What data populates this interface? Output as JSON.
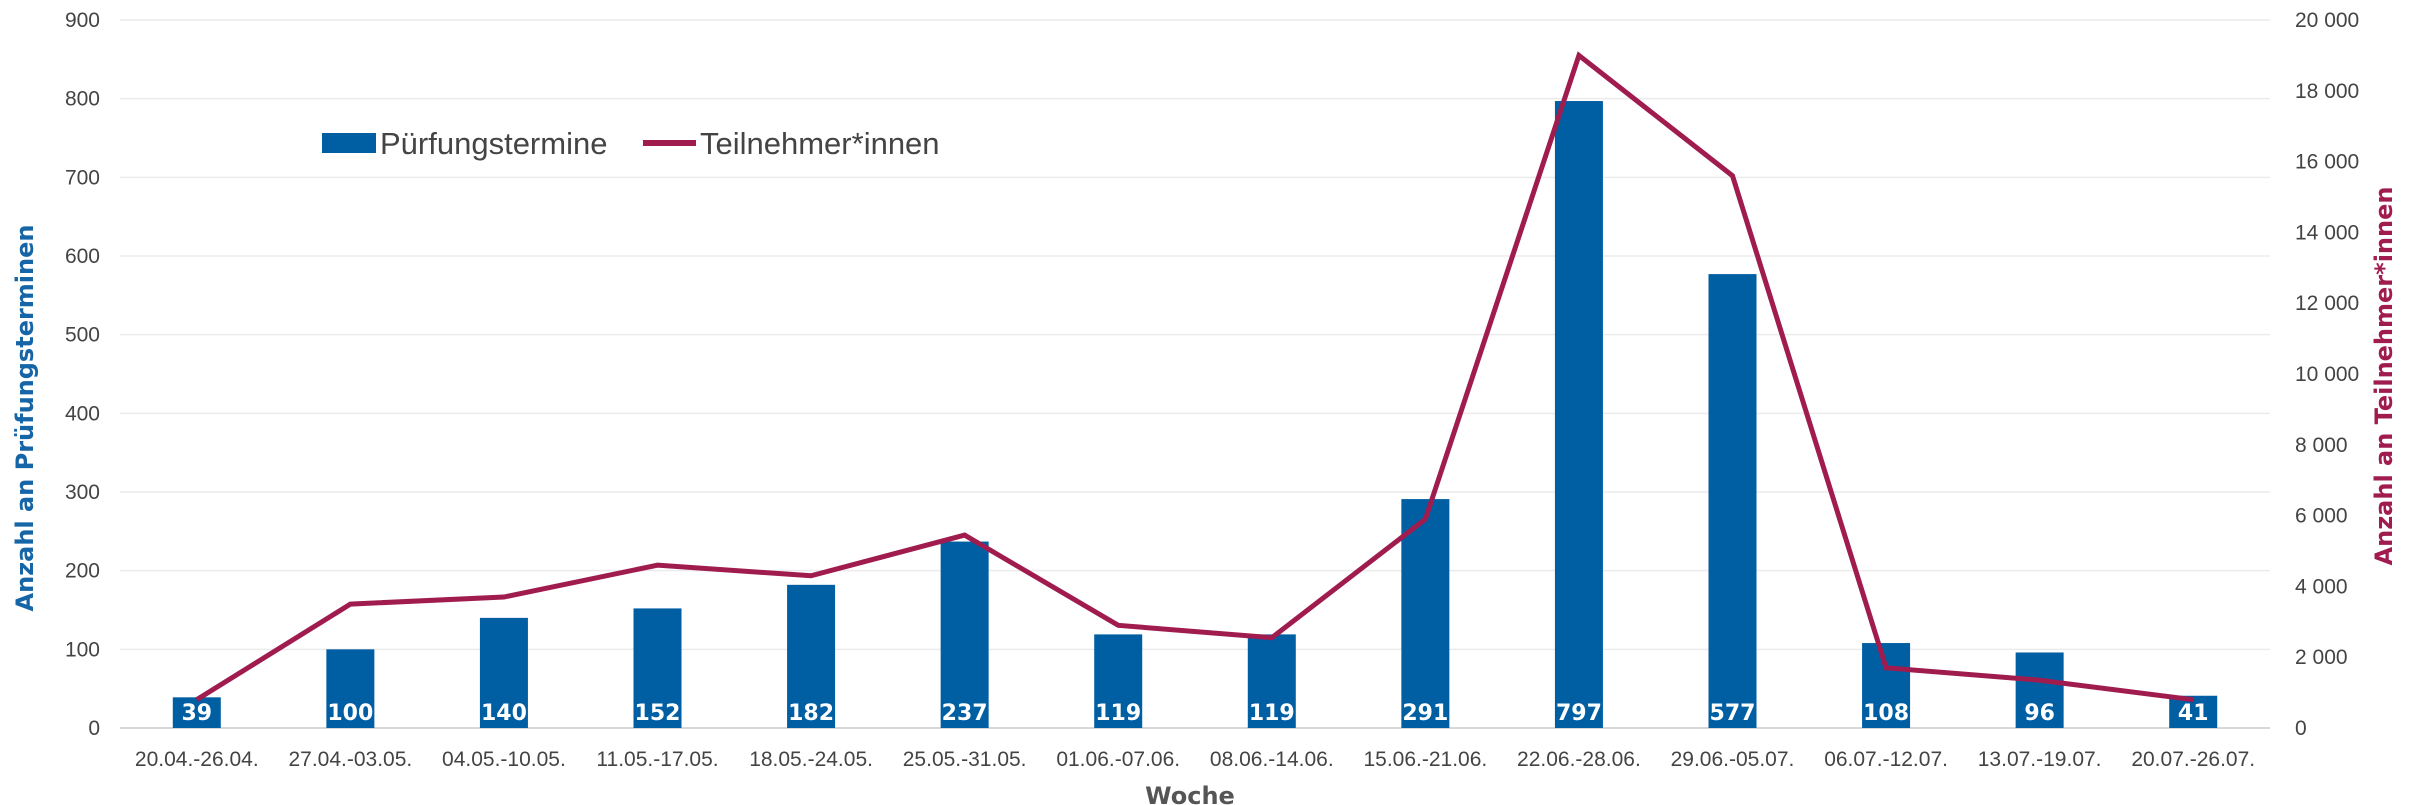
{
  "chart_data": {
    "type": "bar+line",
    "xlabel": "Woche",
    "ylabel_left": "Anzahl an Prüfungsterminen",
    "ylabel_right": "Anzahl an Teilnehmer*innen",
    "categories": [
      "20.04.-26.04.",
      "27.04.-03.05.",
      "04.05.-10.05.",
      "11.05.-17.05.",
      "18.05.-24.05.",
      "25.05.-31.05.",
      "01.06.-07.06.",
      "08.06.-14.06.",
      "15.06.-21.06.",
      "22.06.-28.06.",
      "29.06.-05.07.",
      "06.07.-12.07.",
      "13.07.-19.07.",
      "20.07.-26.07."
    ],
    "y_left": {
      "min": 0,
      "max": 900,
      "ticks": [
        "0",
        "100",
        "200",
        "300",
        "400",
        "500",
        "600",
        "700",
        "800",
        "900"
      ]
    },
    "y_right": {
      "min": 0,
      "max": 20000,
      "ticks": [
        "0",
        "2 000",
        "4 000",
        "6 000",
        "8 000",
        "10 000",
        "12 000",
        "14 000",
        "16 000",
        "18 000",
        "20 000"
      ]
    },
    "grid": true,
    "legend_position": "top-left",
    "series": [
      {
        "name": "Pürfungstermine",
        "type": "bar",
        "axis": "left",
        "color": "#005ea3",
        "values": [
          39,
          100,
          140,
          152,
          182,
          237,
          119,
          119,
          291,
          797,
          577,
          108,
          96,
          41
        ],
        "labels": [
          "39",
          "100",
          "140",
          "152",
          "182",
          "237",
          "119",
          "119",
          "291",
          "797",
          "577",
          "108",
          "96",
          "41"
        ]
      },
      {
        "name": "Teilnehmer*innen",
        "type": "line",
        "axis": "right",
        "color": "#a01c4f",
        "values": [
          800,
          3500,
          3700,
          4600,
          4300,
          5450,
          2900,
          2550,
          5900,
          19000,
          15600,
          1700,
          1350,
          800
        ]
      }
    ]
  }
}
